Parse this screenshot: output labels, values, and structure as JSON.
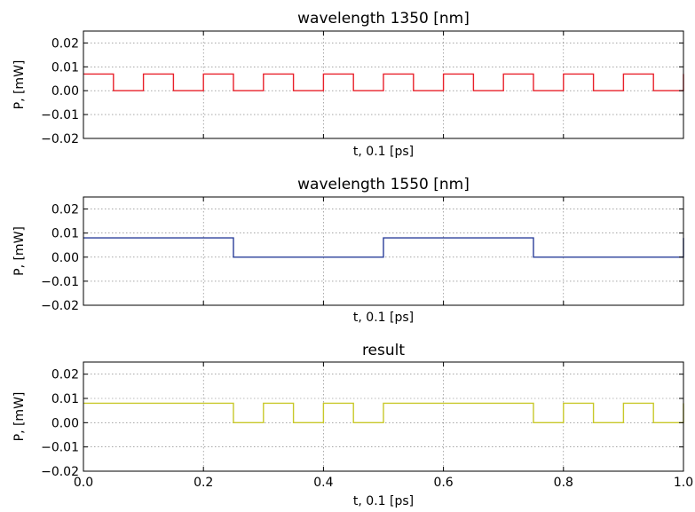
{
  "chart_data": [
    {
      "type": "line",
      "title": "wavelength 1350 [nm]",
      "xlabel": "t, 0.1 [ps]",
      "ylabel": "P, [mW]",
      "xlim": [
        0.0,
        1.0
      ],
      "ylim": [
        -0.02,
        0.025
      ],
      "yticks": [
        "0.02",
        "0.01",
        "0.00",
        "−0.01",
        "−0.02"
      ],
      "ytick_values": [
        0.02,
        0.01,
        0.0,
        -0.01,
        -0.02
      ],
      "xtick_values": [
        0.0,
        0.2,
        0.4,
        0.6,
        0.8,
        1.0
      ],
      "xticks": [],
      "grid": true,
      "color": "#e8202a",
      "series": [
        {
          "x": [
            0.0,
            0.05,
            0.05,
            0.1,
            0.1,
            0.15,
            0.15,
            0.2,
            0.2,
            0.25,
            0.25,
            0.3,
            0.3,
            0.35,
            0.35,
            0.4,
            0.4,
            0.45,
            0.45,
            0.5,
            0.5,
            0.55,
            0.55,
            0.6,
            0.6,
            0.65,
            0.65,
            0.7,
            0.7,
            0.75,
            0.75,
            0.8,
            0.8,
            0.85,
            0.85,
            0.9,
            0.9,
            0.95,
            0.95,
            1.0,
            1.0
          ],
          "y": [
            0.007,
            0.007,
            0.0,
            0.0,
            0.007,
            0.007,
            0.0,
            0.0,
            0.007,
            0.007,
            0.0,
            0.0,
            0.007,
            0.007,
            0.0,
            0.0,
            0.007,
            0.007,
            0.0,
            0.0,
            0.007,
            0.007,
            0.0,
            0.0,
            0.007,
            0.007,
            0.0,
            0.0,
            0.007,
            0.007,
            0.0,
            0.0,
            0.007,
            0.007,
            0.0,
            0.0,
            0.007,
            0.007,
            0.0,
            0.0,
            0.007
          ]
        }
      ]
    },
    {
      "type": "line",
      "title": "wavelength 1550 [nm]",
      "xlabel": "t, 0.1 [ps]",
      "ylabel": "P, [mW]",
      "xlim": [
        0.0,
        1.0
      ],
      "ylim": [
        -0.02,
        0.025
      ],
      "yticks": [
        "0.02",
        "0.01",
        "0.00",
        "−0.01",
        "−0.02"
      ],
      "ytick_values": [
        0.02,
        0.01,
        0.0,
        -0.01,
        -0.02
      ],
      "xtick_values": [
        0.0,
        0.2,
        0.4,
        0.6,
        0.8,
        1.0
      ],
      "xticks": [],
      "grid": true,
      "color": "#2a3f9a",
      "series": [
        {
          "x": [
            0.0,
            0.25,
            0.25,
            0.5,
            0.5,
            0.75,
            0.75,
            1.0,
            1.0
          ],
          "y": [
            0.008,
            0.008,
            0.0,
            0.0,
            0.008,
            0.008,
            0.0,
            0.0,
            0.008
          ]
        }
      ]
    },
    {
      "type": "line",
      "title": "result",
      "xlabel": "t, 0.1 [ps]",
      "ylabel": "P, [mW]",
      "xlim": [
        0.0,
        1.0
      ],
      "ylim": [
        -0.02,
        0.025
      ],
      "yticks": [
        "0.02",
        "0.01",
        "0.00",
        "−0.01",
        "−0.02"
      ],
      "ytick_values": [
        0.02,
        0.01,
        0.0,
        -0.01,
        -0.02
      ],
      "xtick_values": [
        0.0,
        0.2,
        0.4,
        0.6,
        0.8,
        1.0
      ],
      "xticks": [
        "0.0",
        "0.2",
        "0.4",
        "0.6",
        "0.8",
        "1.0"
      ],
      "grid": true,
      "color": "#c8c82a",
      "series": [
        {
          "x": [
            0.0,
            0.25,
            0.25,
            0.3,
            0.3,
            0.35,
            0.35,
            0.4,
            0.4,
            0.45,
            0.45,
            0.5,
            0.5,
            0.75,
            0.75,
            0.8,
            0.8,
            0.85,
            0.85,
            0.9,
            0.9,
            0.95,
            0.95,
            1.0,
            1.0
          ],
          "y": [
            0.008,
            0.008,
            0.0,
            0.0,
            0.008,
            0.008,
            0.0,
            0.0,
            0.008,
            0.008,
            0.0,
            0.0,
            0.008,
            0.008,
            0.0,
            0.0,
            0.008,
            0.008,
            0.0,
            0.0,
            0.008,
            0.008,
            0.0,
            0.0,
            0.008
          ]
        }
      ]
    }
  ]
}
